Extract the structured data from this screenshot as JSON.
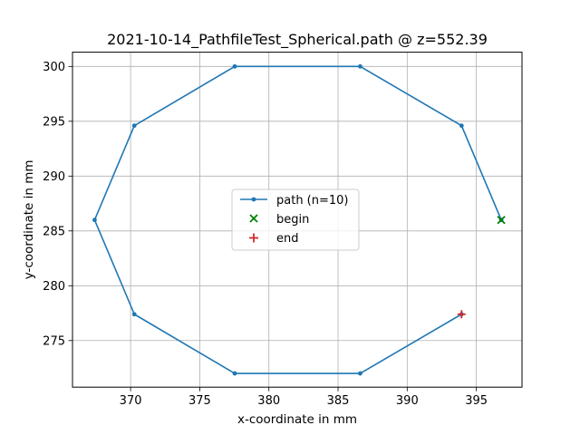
{
  "chart_data": {
    "type": "line",
    "title": "2021-10-14_PathfileTest_Spherical.path @ z=552.39",
    "xlabel": "x-coordinate in mm",
    "ylabel": "y-coordinate in mm",
    "xlim": [
      365.8,
      398.3
    ],
    "ylim": [
      270.75,
      301.3
    ],
    "xticks": [
      370,
      375,
      380,
      385,
      390,
      395
    ],
    "yticks": [
      275,
      280,
      285,
      290,
      295,
      300
    ],
    "grid": true,
    "legend_position": "center",
    "series": [
      {
        "name": "path (n=10)",
        "color": "#1f77b4",
        "marker": "dot",
        "x": [
          396.8,
          393.93,
          386.6,
          377.53,
          370.27,
          367.4,
          370.27,
          377.53,
          386.6,
          393.93
        ],
        "y": [
          286.0,
          294.6,
          300.0,
          300.0,
          294.6,
          286.0,
          277.4,
          272.0,
          272.0,
          277.4
        ]
      }
    ],
    "begin": {
      "name": "begin",
      "color": "#008000",
      "marker": "x",
      "x": 396.8,
      "y": 286.0
    },
    "end": {
      "name": "end",
      "color": "#d62728",
      "marker": "+",
      "x": 393.93,
      "y": 277.4
    }
  }
}
